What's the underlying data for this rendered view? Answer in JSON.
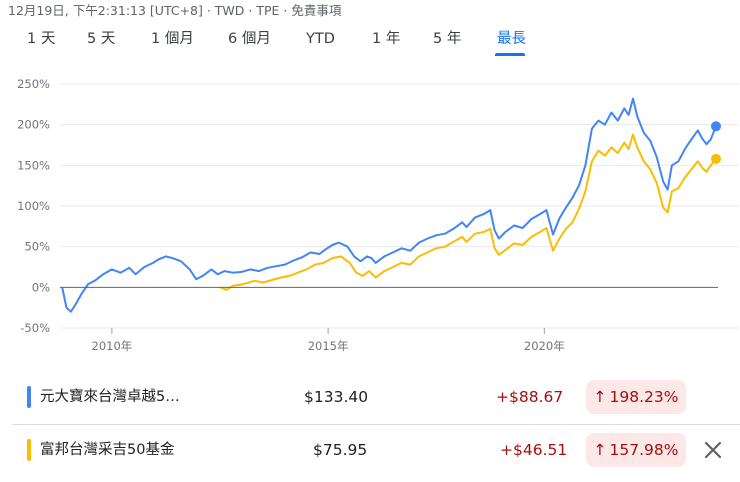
{
  "meta": {
    "text": "12月19日, 下午2:31:13 [UTC+8] · TWD · TPE · 免責事項"
  },
  "tabs": [
    {
      "label": "1 天"
    },
    {
      "label": "5 天"
    },
    {
      "label": "1 個月"
    },
    {
      "label": "6 個月"
    },
    {
      "label": "YTD"
    },
    {
      "label": "1 年"
    },
    {
      "label": "5 年"
    },
    {
      "label": "最長"
    }
  ],
  "active_tab": "最長",
  "funds": [
    {
      "name": "元大寶來台灣卓越5…",
      "price": "$133.40",
      "change": "+$88.67",
      "change_pct": "198.23%",
      "arrow": "↑",
      "color": "#4285f4"
    },
    {
      "name": "富邦台灣采吉50基金",
      "price": "$75.95",
      "change": "+$46.51",
      "change_pct": "157.98%",
      "arrow": "↑",
      "color": "#fbbc04"
    }
  ],
  "close_icon": "close-icon",
  "chart_data": {
    "type": "line",
    "title": "",
    "xlabel": "",
    "ylabel": "",
    "x_range": [
      2008.8,
      2023.97
    ],
    "ylim": [
      -50,
      250
    ],
    "y_ticks": [
      250,
      200,
      150,
      100,
      50,
      0,
      -50
    ],
    "y_tick_labels": [
      "250%",
      "200%",
      "150%",
      "100%",
      "50%",
      "0%",
      "-50%"
    ],
    "x_ticks": [
      2010,
      2015,
      2020
    ],
    "x_tick_labels": [
      "2010年",
      "2015年",
      "2020年"
    ],
    "grid": "horizontal",
    "series": [
      {
        "color": "#4285f4",
        "points": [
          [
            2008.85,
            0
          ],
          [
            2008.95,
            -25
          ],
          [
            2009.05,
            -30
          ],
          [
            2009.15,
            -22
          ],
          [
            2009.3,
            -8
          ],
          [
            2009.45,
            4
          ],
          [
            2009.6,
            8
          ],
          [
            2009.8,
            16
          ],
          [
            2010.0,
            22
          ],
          [
            2010.2,
            18
          ],
          [
            2010.4,
            24
          ],
          [
            2010.55,
            16
          ],
          [
            2010.75,
            25
          ],
          [
            2010.95,
            30
          ],
          [
            2011.1,
            35
          ],
          [
            2011.25,
            38
          ],
          [
            2011.4,
            36
          ],
          [
            2011.6,
            32
          ],
          [
            2011.8,
            22
          ],
          [
            2011.95,
            10
          ],
          [
            2012.1,
            14
          ],
          [
            2012.3,
            22
          ],
          [
            2012.45,
            16
          ],
          [
            2012.6,
            20
          ],
          [
            2012.8,
            18
          ],
          [
            2013.0,
            19
          ],
          [
            2013.2,
            22
          ],
          [
            2013.4,
            20
          ],
          [
            2013.6,
            24
          ],
          [
            2013.8,
            26
          ],
          [
            2014.0,
            28
          ],
          [
            2014.2,
            33
          ],
          [
            2014.4,
            37
          ],
          [
            2014.6,
            43
          ],
          [
            2014.8,
            41
          ],
          [
            2014.95,
            47
          ],
          [
            2015.1,
            52
          ],
          [
            2015.25,
            55
          ],
          [
            2015.45,
            50
          ],
          [
            2015.6,
            38
          ],
          [
            2015.75,
            32
          ],
          [
            2015.9,
            38
          ],
          [
            2016.0,
            36
          ],
          [
            2016.1,
            30
          ],
          [
            2016.3,
            38
          ],
          [
            2016.5,
            43
          ],
          [
            2016.7,
            48
          ],
          [
            2016.9,
            45
          ],
          [
            2017.1,
            55
          ],
          [
            2017.3,
            60
          ],
          [
            2017.5,
            64
          ],
          [
            2017.7,
            66
          ],
          [
            2017.9,
            72
          ],
          [
            2018.1,
            80
          ],
          [
            2018.2,
            74
          ],
          [
            2018.4,
            86
          ],
          [
            2018.6,
            90
          ],
          [
            2018.75,
            95
          ],
          [
            2018.85,
            70
          ],
          [
            2018.95,
            60
          ],
          [
            2019.1,
            68
          ],
          [
            2019.3,
            76
          ],
          [
            2019.5,
            73
          ],
          [
            2019.7,
            84
          ],
          [
            2019.9,
            90
          ],
          [
            2020.05,
            95
          ],
          [
            2020.2,
            65
          ],
          [
            2020.35,
            85
          ],
          [
            2020.5,
            98
          ],
          [
            2020.65,
            110
          ],
          [
            2020.8,
            125
          ],
          [
            2020.95,
            150
          ],
          [
            2021.1,
            195
          ],
          [
            2021.25,
            205
          ],
          [
            2021.4,
            200
          ],
          [
            2021.55,
            215
          ],
          [
            2021.7,
            205
          ],
          [
            2021.85,
            220
          ],
          [
            2021.95,
            212
          ],
          [
            2022.05,
            232
          ],
          [
            2022.15,
            210
          ],
          [
            2022.3,
            190
          ],
          [
            2022.45,
            180
          ],
          [
            2022.6,
            160
          ],
          [
            2022.75,
            130
          ],
          [
            2022.85,
            120
          ],
          [
            2022.95,
            150
          ],
          [
            2023.1,
            155
          ],
          [
            2023.25,
            170
          ],
          [
            2023.4,
            182
          ],
          [
            2023.55,
            193
          ],
          [
            2023.65,
            183
          ],
          [
            2023.75,
            176
          ],
          [
            2023.85,
            182
          ],
          [
            2023.97,
            198
          ]
        ]
      },
      {
        "color": "#fbbc04",
        "points": [
          [
            2012.5,
            0
          ],
          [
            2012.65,
            -3
          ],
          [
            2012.8,
            2
          ],
          [
            2012.95,
            3
          ],
          [
            2013.1,
            5
          ],
          [
            2013.3,
            8
          ],
          [
            2013.5,
            6
          ],
          [
            2013.7,
            9
          ],
          [
            2013.9,
            12
          ],
          [
            2014.1,
            14
          ],
          [
            2014.3,
            18
          ],
          [
            2014.5,
            22
          ],
          [
            2014.7,
            28
          ],
          [
            2014.9,
            30
          ],
          [
            2015.1,
            36
          ],
          [
            2015.3,
            38
          ],
          [
            2015.5,
            30
          ],
          [
            2015.65,
            18
          ],
          [
            2015.8,
            14
          ],
          [
            2015.95,
            20
          ],
          [
            2016.1,
            12
          ],
          [
            2016.3,
            20
          ],
          [
            2016.5,
            25
          ],
          [
            2016.7,
            30
          ],
          [
            2016.9,
            28
          ],
          [
            2017.1,
            38
          ],
          [
            2017.3,
            43
          ],
          [
            2017.5,
            48
          ],
          [
            2017.7,
            50
          ],
          [
            2017.9,
            56
          ],
          [
            2018.1,
            62
          ],
          [
            2018.2,
            56
          ],
          [
            2018.4,
            66
          ],
          [
            2018.6,
            68
          ],
          [
            2018.75,
            72
          ],
          [
            2018.85,
            48
          ],
          [
            2018.95,
            40
          ],
          [
            2019.1,
            46
          ],
          [
            2019.3,
            54
          ],
          [
            2019.5,
            52
          ],
          [
            2019.7,
            62
          ],
          [
            2019.9,
            68
          ],
          [
            2020.05,
            73
          ],
          [
            2020.2,
            45
          ],
          [
            2020.35,
            60
          ],
          [
            2020.5,
            72
          ],
          [
            2020.65,
            80
          ],
          [
            2020.8,
            96
          ],
          [
            2020.95,
            118
          ],
          [
            2021.1,
            155
          ],
          [
            2021.25,
            168
          ],
          [
            2021.4,
            162
          ],
          [
            2021.55,
            172
          ],
          [
            2021.7,
            165
          ],
          [
            2021.85,
            178
          ],
          [
            2021.95,
            170
          ],
          [
            2022.05,
            188
          ],
          [
            2022.15,
            172
          ],
          [
            2022.3,
            155
          ],
          [
            2022.45,
            145
          ],
          [
            2022.6,
            128
          ],
          [
            2022.75,
            98
          ],
          [
            2022.85,
            92
          ],
          [
            2022.95,
            118
          ],
          [
            2023.1,
            122
          ],
          [
            2023.25,
            135
          ],
          [
            2023.4,
            145
          ],
          [
            2023.55,
            155
          ],
          [
            2023.65,
            147
          ],
          [
            2023.75,
            142
          ],
          [
            2023.85,
            150
          ],
          [
            2023.97,
            158
          ]
        ]
      }
    ]
  }
}
